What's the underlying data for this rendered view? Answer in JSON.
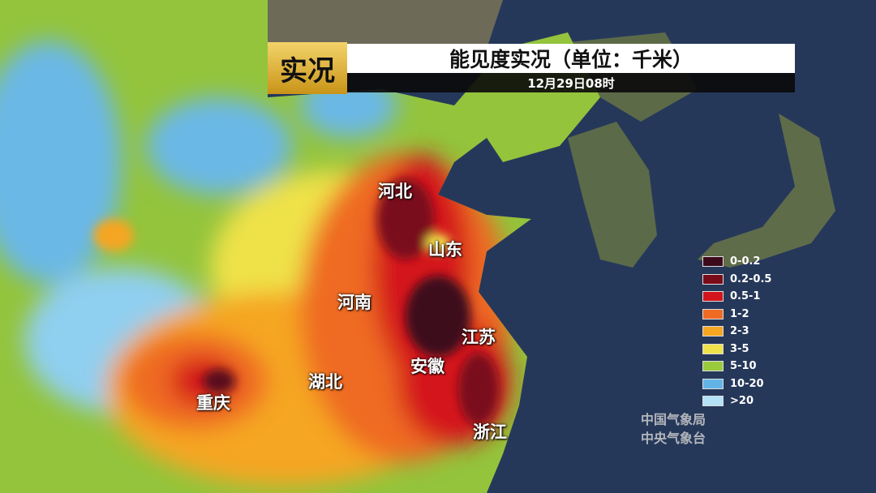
{
  "header": {
    "tag": "实况",
    "title": "能见度实况（单位：千米）",
    "time": "12月29日08时"
  },
  "provinces": [
    "河北",
    "山东",
    "河南",
    "江苏",
    "安徽",
    "湖北",
    "重庆",
    "浙江"
  ],
  "legend": [
    {
      "label": "0-0.2",
      "color": "#3d0a1c"
    },
    {
      "label": "0.2-0.5",
      "color": "#7a0c1a"
    },
    {
      "label": "0.5-1",
      "color": "#d4141c"
    },
    {
      "label": "1-2",
      "color": "#ef6a22"
    },
    {
      "label": "2-3",
      "color": "#f5a623"
    },
    {
      "label": "3-5",
      "color": "#efe24a"
    },
    {
      "label": "5-10",
      "color": "#9acb3c"
    },
    {
      "label": "10-20",
      "color": "#62b4e6"
    },
    {
      "label": ">20",
      "color": "#b4e2f6"
    }
  ],
  "watermark": [
    "中国气象局",
    "中央气象台"
  ]
}
